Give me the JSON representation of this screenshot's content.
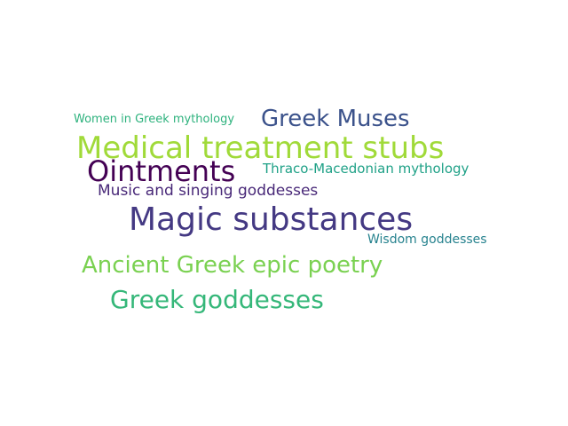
{
  "words": [
    {
      "text": "Magic substances",
      "color": "#443983"
    },
    {
      "text": "Medical treatment stubs",
      "color": "#a0da39"
    },
    {
      "text": "Ointments",
      "color": "#440154"
    },
    {
      "text": "Greek Muses",
      "color": "#3b528b"
    },
    {
      "text": "Ancient Greek epic poetry",
      "color": "#7ad151"
    },
    {
      "text": "Greek goddesses",
      "color": "#35b779"
    },
    {
      "text": "Music and singing goddesses",
      "color": "#482878"
    },
    {
      "text": "Thraco-Macedonian mythology",
      "color": "#1fa187"
    },
    {
      "text": "Women in Greek mythology",
      "color": "#2db27d"
    },
    {
      "text": "Wisdom goddesses",
      "color": "#26828e"
    }
  ]
}
